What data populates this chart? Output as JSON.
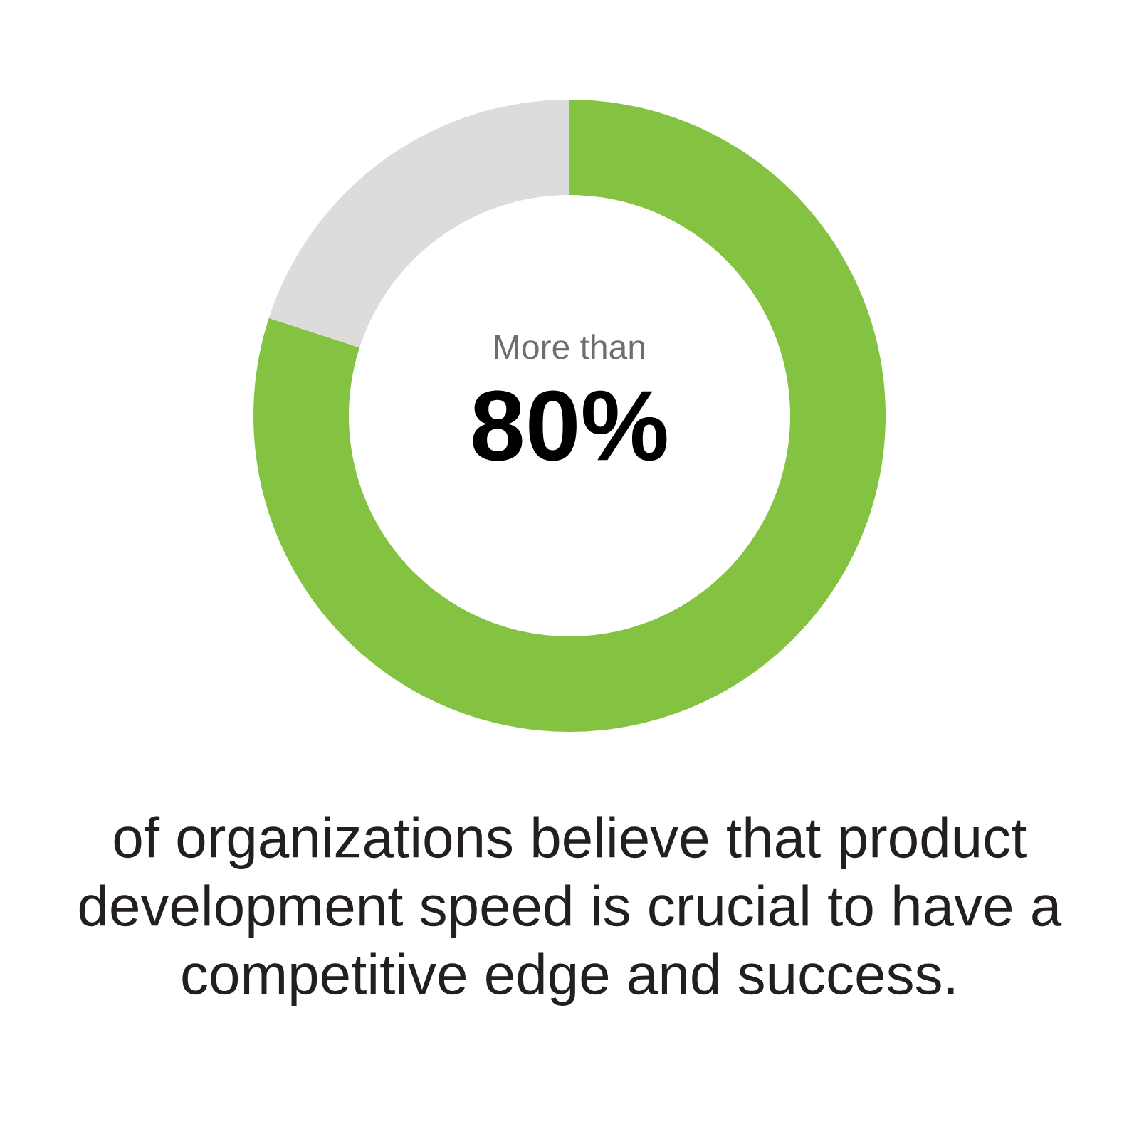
{
  "chart_data": {
    "type": "donut",
    "categories": [
      null,
      null
    ],
    "values": [
      80,
      20
    ],
    "colors": [
      "#84c341",
      "#dcdcdc"
    ],
    "value_labels": [
      "80%",
      null
    ],
    "annotations": [
      "More than",
      "of organizations believe that product development speed is crucial to have a competitive edge and success."
    ]
  }
}
